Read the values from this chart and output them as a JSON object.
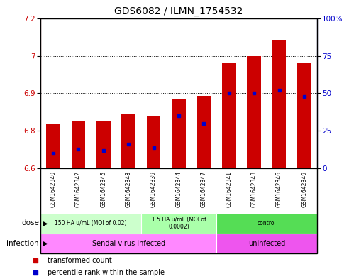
{
  "title": "GDS6082 / ILMN_1754532",
  "samples": [
    "GSM1642340",
    "GSM1642342",
    "GSM1642345",
    "GSM1642348",
    "GSM1642339",
    "GSM1642344",
    "GSM1642347",
    "GSM1642341",
    "GSM1642343",
    "GSM1642346",
    "GSM1642349"
  ],
  "bar_values": [
    6.78,
    6.79,
    6.79,
    6.82,
    6.81,
    6.88,
    6.89,
    7.02,
    7.05,
    7.11,
    7.02
  ],
  "blue_pct": [
    10,
    13,
    12,
    16,
    14,
    35,
    30,
    50,
    50,
    52,
    48
  ],
  "bar_bottom": 6.6,
  "ylim_left": [
    6.6,
    7.2
  ],
  "ylim_right": [
    0,
    100
  ],
  "yticks_left": [
    6.6,
    6.75,
    6.9,
    7.05,
    7.2
  ],
  "yticks_right": [
    0,
    25,
    50,
    75,
    100
  ],
  "ytick_labels_right": [
    "0",
    "25",
    "50",
    "75",
    "100%"
  ],
  "bar_color": "#cc0000",
  "blue_color": "#0000cc",
  "dose_groups": [
    {
      "label": "150 HA u/mL (MOI of 0.02)",
      "start": 0,
      "end": 4,
      "color": "#ccffcc"
    },
    {
      "label": "1.5 HA u/mL (MOI of\n0.0002)",
      "start": 4,
      "end": 7,
      "color": "#aaffaa"
    },
    {
      "label": "control",
      "start": 7,
      "end": 11,
      "color": "#55dd55"
    }
  ],
  "infection_groups": [
    {
      "label": "Sendai virus infected",
      "start": 0,
      "end": 7,
      "color": "#ff88ff"
    },
    {
      "label": "uninfected",
      "start": 7,
      "end": 11,
      "color": "#ee55ee"
    }
  ],
  "dose_label": "dose",
  "infection_label": "infection",
  "legend_items": [
    {
      "color": "#cc0000",
      "label": "transformed count"
    },
    {
      "color": "#0000cc",
      "label": "percentile rank within the sample"
    }
  ],
  "background_color": "#ffffff",
  "title_fontsize": 10,
  "bar_width": 0.55
}
